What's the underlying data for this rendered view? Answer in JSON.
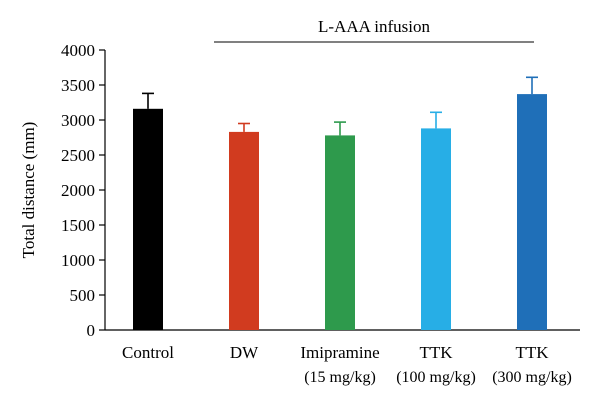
{
  "chart_data": {
    "type": "bar",
    "title": "",
    "xlabel": "",
    "ylabel": "Total distance (mm)",
    "ylim": [
      0,
      4000
    ],
    "yticks": [
      0,
      500,
      1000,
      1500,
      2000,
      2500,
      3000,
      3500,
      4000
    ],
    "grid": false,
    "categories": [
      {
        "line1": "Control",
        "line2": ""
      },
      {
        "line1": "DW",
        "line2": ""
      },
      {
        "line1": "Imipramine",
        "line2": "(15 mg/kg)"
      },
      {
        "line1": "TTK",
        "line2": "(100 mg/kg)"
      },
      {
        "line1": "TTK",
        "line2": "(300 mg/kg)"
      }
    ],
    "values": [
      3160,
      2830,
      2780,
      2880,
      3370
    ],
    "errors": [
      220,
      120,
      190,
      230,
      240
    ],
    "colors": [
      "#000000",
      "#d13b1f",
      "#2e9a4c",
      "#27aee6",
      "#1f6fb8"
    ],
    "annotation": {
      "label": "L-AAA infusion",
      "from_category": 1,
      "to_category": 4
    }
  }
}
